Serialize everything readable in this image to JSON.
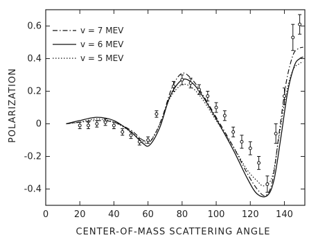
{
  "chart_data": {
    "type": "line",
    "xlabel": "CENTER-OF-MASS  SCATTERING  ANGLE",
    "ylabel": "POLARIZATION",
    "xlim": [
      0,
      152
    ],
    "ylim": [
      -0.5,
      0.7
    ],
    "xticks": [
      0,
      20,
      40,
      60,
      80,
      100,
      120,
      140
    ],
    "yticks": [
      -0.4,
      -0.2,
      0,
      0.2,
      0.4,
      0.6
    ],
    "ytick_labels": [
      "-0.4",
      "-0.2",
      "0",
      "0.2",
      "0.4",
      "0.6"
    ],
    "grid": false,
    "legend_position": "top-left",
    "series": [
      {
        "name": "v = 7 MEV",
        "style": "dashdot",
        "x": [
          12,
          20,
          30,
          40,
          50,
          57,
          62,
          68,
          74,
          80,
          86,
          92,
          100,
          110,
          118,
          124,
          129,
          133,
          137,
          141,
          145,
          148,
          151
        ],
        "y": [
          0.0,
          0.01,
          0.02,
          0.01,
          -0.04,
          -0.1,
          -0.1,
          0.03,
          0.22,
          0.31,
          0.27,
          0.18,
          0.04,
          -0.14,
          -0.3,
          -0.4,
          -0.44,
          -0.35,
          -0.05,
          0.25,
          0.42,
          0.46,
          0.47
        ]
      },
      {
        "name": "v = 6 MEV",
        "style": "solid",
        "x": [
          12,
          20,
          30,
          40,
          50,
          57,
          61,
          67,
          73,
          80,
          86,
          92,
          100,
          110,
          118,
          124,
          130,
          134,
          138,
          142,
          146,
          149,
          151
        ],
        "y": [
          0.0,
          0.02,
          0.04,
          0.02,
          -0.05,
          -0.12,
          -0.13,
          -0.02,
          0.17,
          0.27,
          0.25,
          0.17,
          0.03,
          -0.16,
          -0.33,
          -0.43,
          -0.44,
          -0.34,
          -0.08,
          0.2,
          0.36,
          0.4,
          0.41
        ]
      },
      {
        "name": "v = 5 MEV",
        "style": "dotted",
        "x": [
          12,
          20,
          30,
          40,
          50,
          57,
          61,
          67,
          73,
          80,
          86,
          92,
          100,
          110,
          118,
          124,
          128,
          133,
          137,
          141,
          145,
          149,
          151
        ],
        "y": [
          0.0,
          0.01,
          0.03,
          0.01,
          -0.05,
          -0.11,
          -0.11,
          0.0,
          0.16,
          0.24,
          0.22,
          0.15,
          0.02,
          -0.14,
          -0.28,
          -0.35,
          -0.38,
          -0.32,
          -0.07,
          0.18,
          0.33,
          0.37,
          0.38
        ]
      }
    ],
    "measurements": {
      "x": [
        20,
        25,
        30,
        35,
        40,
        45,
        50,
        55,
        60,
        65,
        75,
        80,
        85,
        90,
        95,
        100,
        105,
        110,
        115,
        120,
        125,
        130,
        135,
        140,
        145,
        149
      ],
      "y": [
        -0.01,
        -0.01,
        0.0,
        0.01,
        -0.01,
        -0.05,
        -0.07,
        -0.11,
        -0.1,
        0.06,
        0.23,
        0.27,
        0.25,
        0.21,
        0.17,
        0.1,
        0.05,
        -0.05,
        -0.11,
        -0.15,
        -0.24,
        -0.37,
        -0.06,
        0.17,
        0.53,
        0.61
      ],
      "err": [
        0.02,
        0.02,
        0.02,
        0.02,
        0.02,
        0.02,
        0.02,
        0.02,
        0.02,
        0.02,
        0.03,
        0.03,
        0.03,
        0.03,
        0.03,
        0.03,
        0.03,
        0.03,
        0.04,
        0.04,
        0.04,
        0.05,
        0.06,
        0.05,
        0.08,
        0.06
      ]
    }
  }
}
